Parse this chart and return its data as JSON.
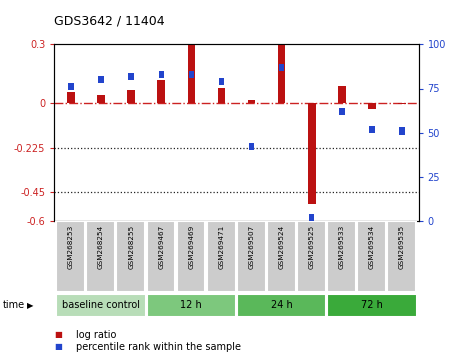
{
  "title": "GDS3642 / 11404",
  "samples": [
    "GSM268253",
    "GSM268254",
    "GSM268255",
    "GSM269467",
    "GSM269469",
    "GSM269471",
    "GSM269507",
    "GSM269524",
    "GSM269525",
    "GSM269533",
    "GSM269534",
    "GSM269535"
  ],
  "log_ratio": [
    0.055,
    0.04,
    0.065,
    0.12,
    0.295,
    0.08,
    0.015,
    0.295,
    -0.51,
    0.09,
    -0.03,
    -0.005
  ],
  "percentile_rank": [
    76,
    80,
    82,
    83,
    83,
    79,
    42,
    87,
    2,
    62,
    52,
    51
  ],
  "ylim_left": [
    -0.6,
    0.3
  ],
  "ylim_right": [
    0,
    100
  ],
  "yticks_left": [
    -0.6,
    -0.45,
    -0.225,
    0.0,
    0.3
  ],
  "yticks_right": [
    0,
    25,
    50,
    75,
    100
  ],
  "hlines": [
    -0.225,
    -0.45
  ],
  "zero_line": 0.0,
  "groups": [
    {
      "label": "baseline control",
      "start": 0,
      "end": 3
    },
    {
      "label": "12 h",
      "start": 3,
      "end": 6
    },
    {
      "label": "24 h",
      "start": 6,
      "end": 9
    },
    {
      "label": "72 h",
      "start": 9,
      "end": 12
    }
  ],
  "group_colors": [
    "#b8ddb8",
    "#7dc87d",
    "#5ab85a",
    "#3aaa3a"
  ],
  "bar_color_red": "#bb1111",
  "bar_color_blue": "#2244cc",
  "bar_width": 0.25,
  "blue_square_size": 0.18,
  "bg_color": "#ffffff",
  "plot_bg_color": "#ffffff",
  "tick_label_color_left": "#cc2222",
  "tick_label_color_right": "#2244cc",
  "legend_red_label": "log ratio",
  "legend_blue_label": "percentile rank within the sample",
  "time_label": "time",
  "zero_line_color": "#cc2222",
  "zero_line_style": "-.",
  "dotted_line_color": "#222222",
  "sample_bg_color": "#cccccc",
  "sample_border_color": "#ffffff"
}
